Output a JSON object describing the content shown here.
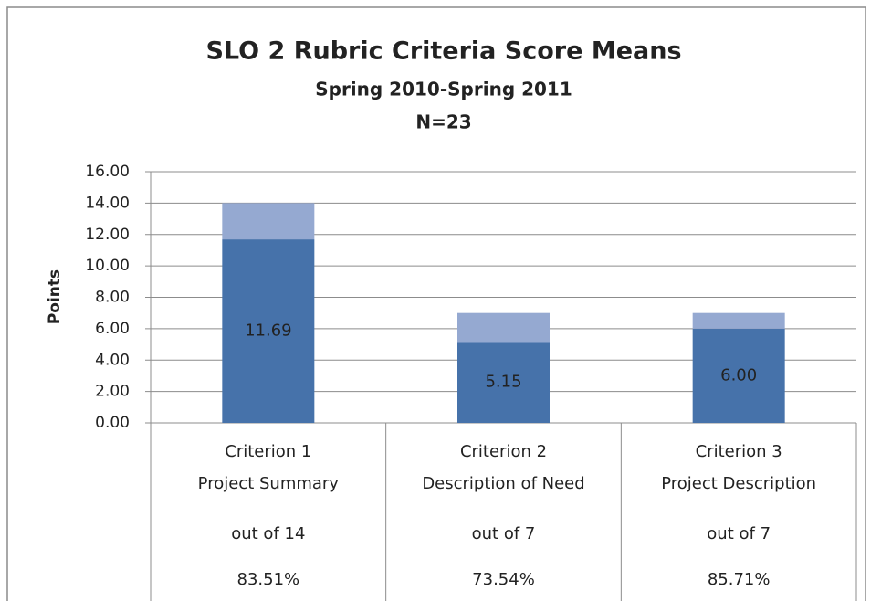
{
  "chart_data": {
    "type": "stacked_bar",
    "title": "SLO 2 Rubric Criteria Score Means",
    "subtitle": "Spring 2010-Spring 2011",
    "note": "N=23",
    "ylabel": "Points",
    "categories": [
      [
        "Criterion 1",
        "Project Summary"
      ],
      [
        "Criterion 2",
        "Description of Need"
      ],
      [
        "Criterion 3",
        "Project Description"
      ]
    ],
    "out_of": [
      "out of 14",
      "out of 7",
      "out of 7"
    ],
    "percentages": [
      "83.51%",
      "73.54%",
      "85.71%"
    ],
    "series": [
      {
        "color": "#4672aa",
        "values": [
          11.69,
          5.15,
          6.0
        ],
        "value_labels": [
          "11.69",
          "5.15",
          "6.00"
        ]
      },
      {
        "color": "#95a9d1",
        "values": [
          2.31,
          1.85,
          1.0
        ]
      }
    ],
    "ylim": [
      0,
      16
    ],
    "yticks": [
      {
        "value": 0,
        "label": "0.00"
      },
      {
        "value": 2,
        "label": "2.00"
      },
      {
        "value": 4,
        "label": "4.00"
      },
      {
        "value": 6,
        "label": "6.00"
      },
      {
        "value": 8,
        "label": "8.00"
      },
      {
        "value": 10,
        "label": "10.00"
      },
      {
        "value": 12,
        "label": "12.00"
      },
      {
        "value": 14,
        "label": "14.00"
      },
      {
        "value": 16,
        "label": "16.00"
      }
    ],
    "grid": true
  }
}
